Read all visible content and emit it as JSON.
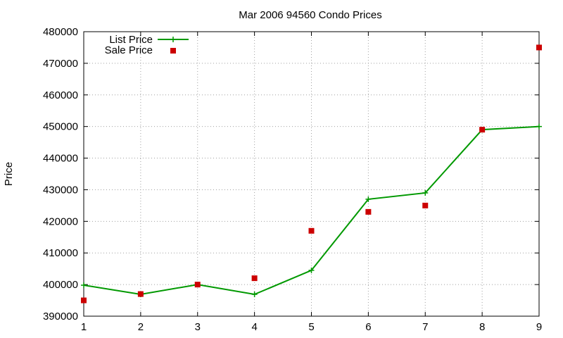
{
  "chart_data": {
    "type": "line",
    "title": "Mar 2006 94560 Condo Prices",
    "xlabel": "",
    "ylabel": "Price",
    "xlim": [
      1,
      9
    ],
    "ylim": [
      390000,
      480000
    ],
    "x_ticks": [
      1,
      2,
      3,
      4,
      5,
      6,
      7,
      8,
      9
    ],
    "y_ticks": [
      390000,
      400000,
      410000,
      420000,
      430000,
      440000,
      450000,
      460000,
      470000,
      480000
    ],
    "grid": true,
    "legend_position": "top-left",
    "series": [
      {
        "name": "List Price",
        "style": "line-points",
        "marker": "plus",
        "color": "#009900",
        "x": [
          1,
          2,
          3,
          4,
          5,
          6,
          7,
          8,
          9
        ],
        "values": [
          399800,
          396900,
          400000,
          396900,
          404500,
          427000,
          429000,
          449000,
          450000
        ]
      },
      {
        "name": "Sale Price",
        "style": "points",
        "marker": "square",
        "color": "#cc0000",
        "x": [
          1,
          2,
          3,
          4,
          5,
          6,
          7,
          8,
          9
        ],
        "values": [
          395000,
          397000,
          400000,
          402000,
          417000,
          423000,
          425000,
          449000,
          475000
        ]
      }
    ]
  }
}
